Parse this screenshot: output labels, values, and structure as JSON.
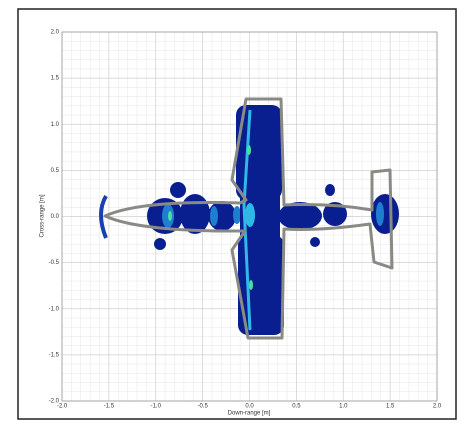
{
  "chart_data": {
    "type": "image",
    "xlabel": "Down-range [m]",
    "ylabel": "Cross-range [m]",
    "xlim": [
      -2,
      2
    ],
    "ylim": [
      -2,
      2
    ],
    "xticks": [
      {
        "value": -2,
        "label": "-2.0"
      },
      {
        "value": -1.5,
        "label": "-1.5"
      },
      {
        "value": -1,
        "label": "-1.0"
      },
      {
        "value": -0.5,
        "label": "-0.5"
      },
      {
        "value": 0,
        "label": "0.0"
      },
      0.5,
      {
        "value": 1,
        "label": "1.0"
      },
      1.5,
      {
        "value": 2,
        "label": "2.0"
      }
    ],
    "yticks": [
      {
        "value": -2,
        "label": "-2.0"
      },
      {
        "value": -1.5,
        "label": "-1.5"
      },
      {
        "value": -1,
        "label": "-1.0"
      },
      {
        "value": -0.5,
        "label": "-0.5"
      },
      {
        "value": 0,
        "label": "0.0"
      },
      0.5,
      {
        "value": 1,
        "label": "1.0"
      },
      1.5,
      {
        "value": 2,
        "label": "2.0"
      }
    ],
    "grid": true
  }
}
